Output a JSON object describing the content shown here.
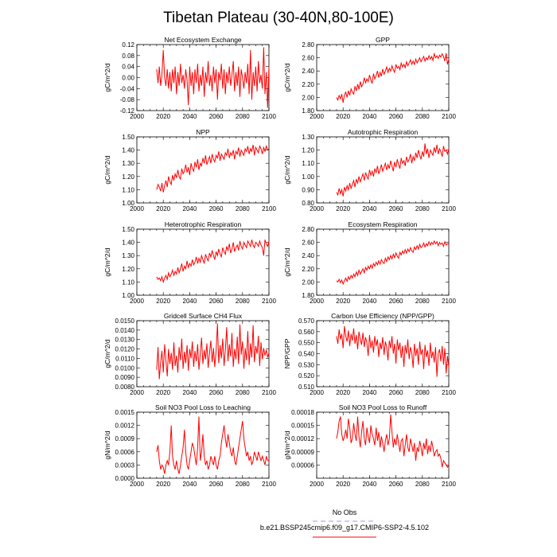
{
  "figure": {
    "title": "Tibetan Plateau (30-40N,80-100E)",
    "series_color": "#ff0000",
    "obs_color": "#9999ff"
  },
  "legend": {
    "obs_label": "No Obs",
    "model_label": "b.e21.BSSP245cmip6.f09_g17.CMIP6-SSP2-4.5.102"
  },
  "chart_data": [
    {
      "type": "line",
      "title": "Net Ecosystem Exchange",
      "ylabel": "gC/m^2/d",
      "xlim": [
        2000,
        2100
      ],
      "ylim": [
        -0.12,
        0.12
      ],
      "xticks": [
        "2000",
        "2020",
        "2040",
        "2060",
        "2080",
        "2100"
      ],
      "yticks": [
        "-0.12",
        "-0.08",
        "-0.04",
        "0.00",
        "0.04",
        "0.08",
        "0.12"
      ],
      "x_start": 2015,
      "values": [
        0.03,
        -0.02,
        0.04,
        -0.03,
        0.01,
        0.1,
        0.0,
        -0.03,
        0.03,
        -0.04,
        0.02,
        -0.05,
        0.03,
        -0.02,
        0.04,
        -0.06,
        0.02,
        -0.03,
        0.05,
        -0.02,
        0.01,
        -0.04,
        0.03,
        -0.01,
        -0.1,
        0.04,
        -0.03,
        0.02,
        -0.06,
        0.03,
        -0.02,
        0.05,
        -0.05,
        0.01,
        -0.03,
        0.04,
        -0.07,
        0.02,
        -0.02,
        0.06,
        -0.03,
        0.01,
        -0.05,
        0.04,
        -0.02,
        0.03,
        -0.08,
        0.02,
        -0.01,
        0.05,
        -0.04,
        0.03,
        -0.06,
        0.02,
        -0.02,
        0.04,
        -0.03,
        0.01,
        0.06,
        -0.05,
        0.02,
        -0.03,
        0.04,
        -0.07,
        0.03,
        0.0,
        -0.04,
        0.02,
        -0.02,
        0.05,
        -0.06,
        0.1,
        -0.08,
        0.02,
        -0.03,
        0.04,
        -0.05,
        0.06,
        -0.02,
        0.01,
        -0.04,
        0.11,
        -0.06,
        0.02,
        -0.11,
        0.04
      ]
    },
    {
      "type": "line",
      "title": "GPP",
      "ylabel": "gC/m^2/d",
      "xlim": [
        2000,
        2100
      ],
      "ylim": [
        1.8,
        2.8
      ],
      "xticks": [
        "2000",
        "2020",
        "2040",
        "2060",
        "2080",
        "2100"
      ],
      "yticks": [
        "1.80",
        "2.00",
        "2.20",
        "2.40",
        "2.60",
        "2.80"
      ],
      "x_start": 2015,
      "values": [
        2.0,
        1.96,
        2.03,
        1.98,
        2.05,
        1.92,
        2.04,
        2.08,
        2.0,
        2.1,
        2.03,
        2.13,
        2.08,
        2.05,
        2.17,
        2.1,
        2.2,
        2.12,
        2.24,
        2.16,
        2.2,
        2.3,
        2.22,
        2.28,
        2.24,
        2.34,
        2.26,
        2.21,
        2.36,
        2.28,
        2.33,
        2.4,
        2.3,
        2.38,
        2.32,
        2.43,
        2.35,
        2.4,
        2.46,
        2.38,
        2.44,
        2.4,
        2.48,
        2.42,
        2.38,
        2.5,
        2.44,
        2.47,
        2.42,
        2.52,
        2.46,
        2.5,
        2.45,
        2.54,
        2.48,
        2.52,
        2.57,
        2.5,
        2.55,
        2.5,
        2.58,
        2.52,
        2.56,
        2.6,
        2.54,
        2.58,
        2.62,
        2.55,
        2.6,
        2.57,
        2.63,
        2.58,
        2.62,
        2.56,
        2.66,
        2.6,
        2.63,
        2.59,
        2.64,
        2.61,
        2.66,
        2.62,
        2.55,
        2.67,
        2.5,
        2.58
      ]
    },
    {
      "type": "line",
      "title": "NPP",
      "ylabel": "gC/m^2/d",
      "xlim": [
        2000,
        2100
      ],
      "ylim": [
        1.0,
        1.5
      ],
      "xticks": [
        "2000",
        "2020",
        "2040",
        "2060",
        "2080",
        "2100"
      ],
      "yticks": [
        "1.00",
        "1.10",
        "1.20",
        "1.30",
        "1.40",
        "1.50"
      ],
      "x_start": 2015,
      "values": [
        1.1,
        1.14,
        1.12,
        1.09,
        1.15,
        1.08,
        1.13,
        1.17,
        1.12,
        1.2,
        1.16,
        1.14,
        1.21,
        1.17,
        1.22,
        1.19,
        1.25,
        1.2,
        1.18,
        1.26,
        1.22,
        1.24,
        1.29,
        1.23,
        1.27,
        1.21,
        1.3,
        1.26,
        1.24,
        1.31,
        1.27,
        1.33,
        1.25,
        1.3,
        1.28,
        1.34,
        1.3,
        1.36,
        1.29,
        1.32,
        1.35,
        1.3,
        1.37,
        1.33,
        1.31,
        1.36,
        1.34,
        1.39,
        1.32,
        1.37,
        1.35,
        1.33,
        1.38,
        1.36,
        1.41,
        1.34,
        1.38,
        1.36,
        1.4,
        1.33,
        1.39,
        1.37,
        1.42,
        1.35,
        1.4,
        1.38,
        1.36,
        1.41,
        1.39,
        1.43,
        1.37,
        1.41,
        1.39,
        1.44,
        1.36,
        1.42,
        1.4,
        1.38,
        1.43,
        1.41,
        1.37,
        1.42,
        1.39,
        1.43,
        1.4,
        1.41
      ]
    },
    {
      "type": "line",
      "title": "Autotrophic Respiration",
      "ylabel": "gC/m^2/d",
      "xlim": [
        2000,
        2100
      ],
      "ylim": [
        0.8,
        1.3
      ],
      "xticks": [
        "2000",
        "2020",
        "2040",
        "2060",
        "2080",
        "2100"
      ],
      "yticks": [
        "0.80",
        "0.90",
        "1.00",
        "1.10",
        "1.20",
        "1.30"
      ],
      "x_start": 2015,
      "values": [
        0.88,
        0.86,
        0.91,
        0.87,
        0.9,
        0.85,
        0.92,
        0.89,
        0.93,
        0.9,
        0.95,
        0.91,
        0.94,
        0.97,
        0.92,
        0.98,
        0.95,
        1.0,
        0.96,
        0.99,
        1.02,
        0.97,
        1.03,
        1.0,
        0.98,
        1.05,
        1.01,
        1.04,
        1.0,
        1.06,
        1.03,
        1.08,
        1.02,
        1.05,
        1.09,
        1.04,
        1.07,
        1.1,
        1.05,
        1.09,
        1.06,
        1.12,
        1.08,
        1.04,
        1.11,
        1.07,
        1.13,
        1.09,
        1.06,
        1.14,
        1.1,
        1.12,
        1.08,
        1.15,
        1.11,
        1.13,
        1.17,
        1.1,
        1.15,
        1.12,
        1.18,
        1.14,
        1.2,
        1.16,
        1.13,
        1.19,
        1.15,
        1.25,
        1.17,
        1.21,
        1.14,
        1.2,
        1.18,
        1.16,
        1.22,
        1.18,
        1.24,
        1.17,
        1.21,
        1.19,
        1.15,
        1.23,
        1.19,
        1.2,
        1.17,
        1.21
      ]
    },
    {
      "type": "line",
      "title": "Heterotrophic Respiration",
      "ylabel": "gC/m^2/d",
      "xlim": [
        2000,
        2100
      ],
      "ylim": [
        1.0,
        1.5
      ],
      "xticks": [
        "2000",
        "2020",
        "2040",
        "2060",
        "2080",
        "2100"
      ],
      "yticks": [
        "1.00",
        "1.10",
        "1.20",
        "1.30",
        "1.40",
        "1.50"
      ],
      "x_start": 2015,
      "values": [
        1.14,
        1.12,
        1.13,
        1.11,
        1.14,
        1.1,
        1.13,
        1.15,
        1.12,
        1.17,
        1.14,
        1.16,
        1.19,
        1.15,
        1.18,
        1.16,
        1.21,
        1.17,
        1.2,
        1.24,
        1.18,
        1.22,
        1.2,
        1.26,
        1.21,
        1.24,
        1.22,
        1.27,
        1.23,
        1.25,
        1.29,
        1.24,
        1.28,
        1.25,
        1.3,
        1.27,
        1.24,
        1.31,
        1.28,
        1.26,
        1.32,
        1.29,
        1.34,
        1.3,
        1.27,
        1.33,
        1.3,
        1.35,
        1.31,
        1.29,
        1.36,
        1.33,
        1.31,
        1.37,
        1.34,
        1.39,
        1.32,
        1.35,
        1.4,
        1.33,
        1.36,
        1.38,
        1.34,
        1.41,
        1.37,
        1.35,
        1.4,
        1.38,
        1.36,
        1.41,
        1.39,
        1.37,
        1.42,
        1.38,
        1.36,
        1.4,
        1.39,
        1.37,
        1.41,
        1.38,
        1.36,
        1.3,
        1.42,
        1.39,
        1.37,
        1.41
      ]
    },
    {
      "type": "line",
      "title": "Ecosystem Respiration",
      "ylabel": "gC/m^2/d",
      "xlim": [
        2000,
        2100
      ],
      "ylim": [
        1.8,
        2.8
      ],
      "xticks": [
        "2000",
        "2020",
        "2040",
        "2060",
        "2080",
        "2100"
      ],
      "yticks": [
        "1.80",
        "2.00",
        "2.20",
        "2.40",
        "2.60",
        "2.80"
      ],
      "x_start": 2015,
      "values": [
        2.02,
        2.0,
        2.04,
        1.99,
        2.03,
        1.97,
        2.02,
        2.06,
        2.01,
        2.08,
        2.04,
        2.1,
        2.06,
        2.12,
        2.08,
        2.15,
        2.1,
        2.18,
        2.12,
        2.16,
        2.2,
        2.14,
        2.22,
        2.18,
        2.24,
        2.2,
        2.26,
        2.21,
        2.28,
        2.24,
        2.3,
        2.26,
        2.32,
        2.27,
        2.34,
        2.3,
        2.28,
        2.36,
        2.31,
        2.38,
        2.34,
        2.4,
        2.35,
        2.42,
        2.37,
        2.44,
        2.39,
        2.36,
        2.45,
        2.41,
        2.47,
        2.43,
        2.49,
        2.44,
        2.5,
        2.46,
        2.52,
        2.47,
        2.45,
        2.53,
        2.49,
        2.55,
        2.5,
        2.57,
        2.52,
        2.54,
        2.59,
        2.53,
        2.58,
        2.55,
        2.61,
        2.56,
        2.6,
        2.57,
        2.62,
        2.58,
        2.61,
        2.55,
        2.6,
        2.57,
        2.59,
        2.54,
        2.61,
        2.56,
        2.58,
        2.57
      ]
    },
    {
      "type": "line",
      "title": "Gridcell Surface CH4 Flux",
      "ylabel": "gC/m^2/d",
      "xlim": [
        2000,
        2100
      ],
      "ylim": [
        0.008,
        0.015
      ],
      "xticks": [
        "2000",
        "2020",
        "2040",
        "2060",
        "2080",
        "2100"
      ],
      "yticks": [
        "0.0080",
        "0.0090",
        "0.0100",
        "0.0110",
        "0.0120",
        "0.0130",
        "0.0140",
        "0.0150"
      ],
      "x_start": 2015,
      "values": [
        0.0098,
        0.0122,
        0.0088,
        0.0106,
        0.0118,
        0.0095,
        0.0125,
        0.0108,
        0.0091,
        0.012,
        0.0104,
        0.0116,
        0.0098,
        0.0127,
        0.0102,
        0.0113,
        0.0095,
        0.0122,
        0.0108,
        0.0131,
        0.0099,
        0.0117,
        0.0105,
        0.0124,
        0.0097,
        0.012,
        0.011,
        0.0128,
        0.0101,
        0.0118,
        0.0107,
        0.0125,
        0.0098,
        0.0115,
        0.0132,
        0.0104,
        0.0119,
        0.0109,
        0.0126,
        0.01,
        0.0116,
        0.0129,
        0.0106,
        0.0121,
        0.0101,
        0.0118,
        0.0147,
        0.0105,
        0.0124,
        0.011,
        0.0131,
        0.0102,
        0.0119,
        0.0143,
        0.0107,
        0.0125,
        0.0112,
        0.0137,
        0.0101,
        0.012,
        0.0109,
        0.0133,
        0.0104,
        0.0146,
        0.0114,
        0.0128,
        0.0099,
        0.0121,
        0.0108,
        0.0139,
        0.0103,
        0.0126,
        0.0111,
        0.0145,
        0.0106,
        0.0123,
        0.0115,
        0.0134,
        0.0102,
        0.0127,
        0.0109,
        0.0121,
        0.0113,
        0.0119,
        0.0111,
        0.0116
      ]
    },
    {
      "type": "line",
      "title": "Carbon Use Efficiency (NPP/GPP)",
      "ylabel": "NPP/GPP",
      "xlim": [
        2000,
        2100
      ],
      "ylim": [
        0.51,
        0.57
      ],
      "xticks": [
        "2000",
        "2020",
        "2040",
        "2060",
        "2080",
        "2100"
      ],
      "yticks": [
        "0.510",
        "0.520",
        "0.530",
        "0.540",
        "0.550",
        "0.560",
        "0.570"
      ],
      "x_start": 2015,
      "values": [
        0.556,
        0.549,
        0.562,
        0.553,
        0.558,
        0.545,
        0.565,
        0.556,
        0.551,
        0.561,
        0.547,
        0.558,
        0.552,
        0.563,
        0.549,
        0.557,
        0.544,
        0.56,
        0.553,
        0.548,
        0.559,
        0.546,
        0.555,
        0.55,
        0.538,
        0.557,
        0.545,
        0.552,
        0.541,
        0.556,
        0.547,
        0.553,
        0.537,
        0.55,
        0.544,
        0.555,
        0.539,
        0.551,
        0.546,
        0.534,
        0.552,
        0.545,
        0.556,
        0.54,
        0.549,
        0.531,
        0.553,
        0.543,
        0.55,
        0.536,
        0.547,
        0.528,
        0.548,
        0.54,
        0.553,
        0.535,
        0.546,
        0.541,
        0.527,
        0.549,
        0.538,
        0.545,
        0.53,
        0.551,
        0.539,
        0.544,
        0.526,
        0.548,
        0.537,
        0.543,
        0.529,
        0.55,
        0.536,
        0.542,
        0.532,
        0.546,
        0.519,
        0.54,
        0.544,
        0.533,
        0.547,
        0.53,
        0.545,
        0.522,
        0.538,
        0.528
      ]
    },
    {
      "type": "line",
      "title": "Soil NO3 Pool Loss to Leaching",
      "ylabel": "gN/m^2/d",
      "xlim": [
        2000,
        2100
      ],
      "ylim": [
        0.0,
        0.0015
      ],
      "xticks": [
        "2000",
        "2020",
        "2040",
        "2060",
        "2080",
        "2100"
      ],
      "yticks": [
        "0.0000",
        "0.0003",
        "0.0006",
        "0.0009",
        "0.0012",
        "0.0015"
      ],
      "x_start": 2015,
      "values": [
        0.0006,
        0.00075,
        0.0004,
        0.0002,
        0.0003,
        0.00025,
        0.0001,
        0.0003,
        0.0004,
        0.0003,
        0.0006,
        0.0012,
        0.0005,
        0.0003,
        0.0002,
        0.0004,
        0.0002,
        0.0001,
        0.0003,
        0.0005,
        0.0007,
        0.0011,
        0.0006,
        0.0003,
        0.0002,
        0.0004,
        0.0006,
        0.0008,
        0.0007,
        0.0005,
        0.0003,
        0.0007,
        0.0014,
        0.0004,
        0.0006,
        0.001,
        0.0005,
        0.0003,
        0.0004,
        0.0002,
        0.0003,
        0.0005,
        0.0004,
        0.0003,
        0.0005,
        0.0003,
        0.0002,
        0.0004,
        0.0005,
        0.0008,
        0.001,
        0.0012,
        0.0009,
        0.0007,
        0.001,
        0.0008,
        0.0006,
        0.0005,
        0.0007,
        0.0004,
        0.0003,
        0.0005,
        0.0007,
        0.0009,
        0.0011,
        0.0013,
        0.0009,
        0.0007,
        0.0005,
        0.0006,
        0.0004,
        0.0005,
        0.0003,
        0.0004,
        0.0006,
        0.0005,
        0.0004,
        0.0006,
        0.0005,
        0.0004,
        0.0005,
        0.0004,
        0.0003,
        0.0005,
        0.0004,
        0.0004
      ]
    },
    {
      "type": "line",
      "title": "Soil NO3 Pool Loss to Runoff",
      "ylabel": "gN/m^2/d",
      "xlim": [
        2000,
        2100
      ],
      "ylim": [
        3e-05,
        0.00018
      ],
      "xticks": [
        "2000",
        "2020",
        "2040",
        "2060",
        "2080",
        "2100"
      ],
      "yticks": [
        "0.00006",
        "0.00009",
        "0.00012",
        "0.00015",
        "0.00018"
      ],
      "x_start": 2015,
      "values": [
        0.00012,
        0.000135,
        0.00016,
        0.00017,
        0.00013,
        0.000115,
        0.000125,
        0.00014,
        0.00012,
        0.000165,
        0.000145,
        0.00011,
        0.00012,
        0.000155,
        0.00013,
        0.000115,
        0.00017,
        0.000125,
        0.0001,
        0.000135,
        0.00016,
        0.00012,
        0.000105,
        0.000145,
        0.000125,
        0.00011,
        0.00015,
        0.00013,
        0.00012,
        0.000105,
        0.000145,
        0.000115,
        0.000135,
        0.0001,
        0.000125,
        0.00011,
        9e-05,
        0.000115,
        0.00013,
        0.000105,
        0.00012,
        0.000175,
        0.000135,
        0.0001,
        0.00012,
        0.000105,
        0.00013,
        0.00011,
        9e-05,
        0.000115,
        0.00012,
        8e-05,
        0.000105,
        0.00013,
        0.0001,
        9e-05,
        0.00012,
        0.000105,
        9e-05,
        0.00011,
        7e-05,
        0.0001,
        9e-05,
        0.000115,
        0.0001,
        8e-05,
        0.00011,
        9.5e-05,
        0.00012,
        8.5e-05,
        0.000105,
        9e-05,
        0.000115,
        0.0001,
        8e-05,
        9e-05,
        9.5e-05,
        8e-05,
        8.5e-05,
        7.5e-05,
        5.5e-05,
        7e-05,
        6.5e-05,
        6e-05,
        5.5e-05,
        6e-05
      ]
    }
  ]
}
